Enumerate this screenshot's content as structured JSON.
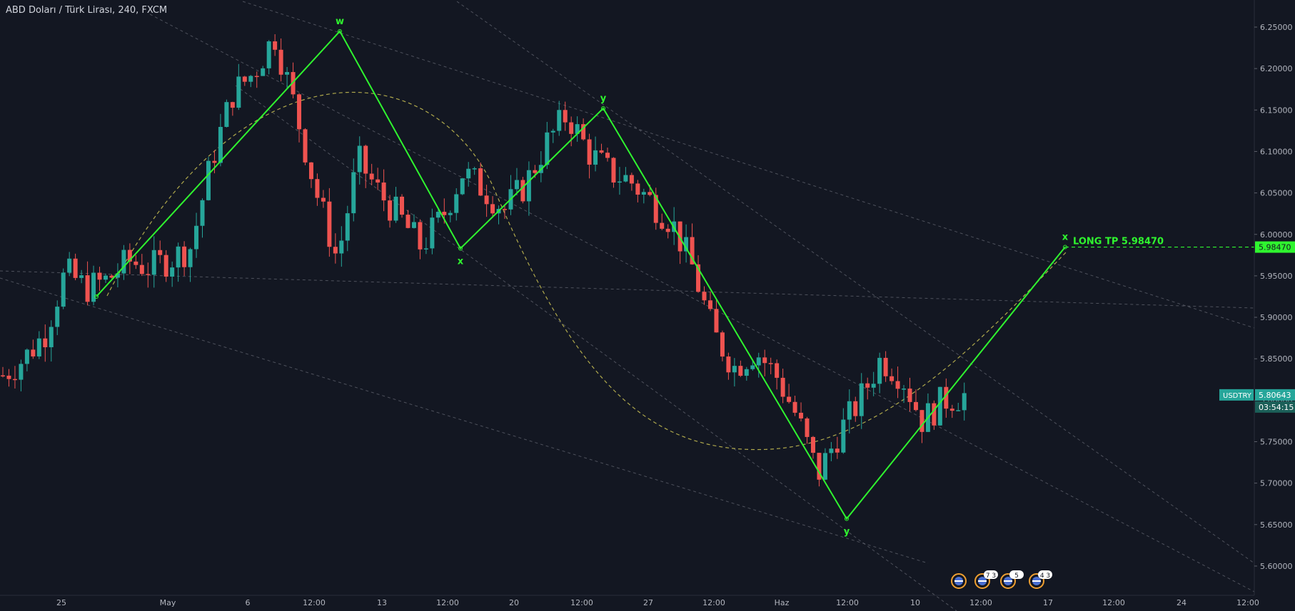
{
  "header": {
    "title": "ABD Doları / Türk Lirası, 240, FXCM"
  },
  "colors": {
    "background": "#131722",
    "up": "#26a69a",
    "down": "#ef5350",
    "wave": "#2ff52f",
    "guide": "#5d606b",
    "arc": "#b0a94c"
  },
  "symbol": {
    "ticker": "USDTRY",
    "last": "5.80643",
    "countdown": "03:54:15"
  },
  "target": {
    "label": "LONG TP 5.98470",
    "price_tag": "5.98470",
    "value": 5.9847
  },
  "events": [
    {
      "badge": ""
    },
    {
      "badge": "7 3"
    },
    {
      "badge": "5"
    },
    {
      "badge": "4 3"
    }
  ],
  "chart_data": {
    "type": "candlestick",
    "title": "ABD Doları / Türk Lirası, 240, FXCM",
    "ylim": [
      5.58,
      6.27
    ],
    "yticks": [
      "6.25000",
      "6.20000",
      "6.15000",
      "6.10000",
      "6.05000",
      "6.00000",
      "5.95000",
      "5.90000",
      "5.85000",
      "5.80000",
      "5.75000",
      "5.70000",
      "5.65000",
      "5.60000"
    ],
    "xticks": [
      "25",
      "May",
      "6",
      "12:00",
      "13",
      "12:00",
      "20",
      "12:00",
      "27",
      "12:00",
      "Haz",
      "12:00",
      "10",
      "12:00",
      "17",
      "12:00",
      "24",
      "12:00"
    ],
    "waves": [
      {
        "label": "",
        "value": 5.925
      },
      {
        "label": "w",
        "value": 6.245
      },
      {
        "label": "x",
        "value": 5.983
      },
      {
        "label": "y",
        "value": 6.152
      },
      {
        "label": "y",
        "value": 5.657
      },
      {
        "label": "x",
        "value": 5.9847
      }
    ],
    "anchors": [
      {
        "close": 5.83
      },
      {
        "close": 5.85
      },
      {
        "close": 5.88
      },
      {
        "close": 5.955
      },
      {
        "close": 5.935
      },
      {
        "close": 5.945
      },
      {
        "close": 5.968
      },
      {
        "close": 5.96
      },
      {
        "close": 5.97
      },
      {
        "close": 5.985
      },
      {
        "close": 6.09
      },
      {
        "close": 6.17
      },
      {
        "close": 6.195
      },
      {
        "close": 6.24
      },
      {
        "close": 6.15
      },
      {
        "close": 6.05
      },
      {
        "close": 5.97
      },
      {
        "close": 6.09
      },
      {
        "close": 6.05
      },
      {
        "close": 6.02
      },
      {
        "close": 5.985
      },
      {
        "close": 6.02
      },
      {
        "close": 6.075
      },
      {
        "close": 6.055
      },
      {
        "close": 6.03
      },
      {
        "close": 6.06
      },
      {
        "close": 6.11
      },
      {
        "close": 6.145
      },
      {
        "close": 6.1
      },
      {
        "close": 6.075
      },
      {
        "close": 6.065
      },
      {
        "close": 6.04
      },
      {
        "close": 6.015
      },
      {
        "close": 5.96
      },
      {
        "close": 5.88
      },
      {
        "close": 5.84
      },
      {
        "close": 5.86
      },
      {
        "close": 5.83
      },
      {
        "close": 5.78
      },
      {
        "close": 5.71
      },
      {
        "close": 5.76
      },
      {
        "close": 5.8
      },
      {
        "close": 5.85
      },
      {
        "close": 5.83
      },
      {
        "close": 5.775
      },
      {
        "close": 5.8
      },
      {
        "close": 5.806
      }
    ]
  }
}
